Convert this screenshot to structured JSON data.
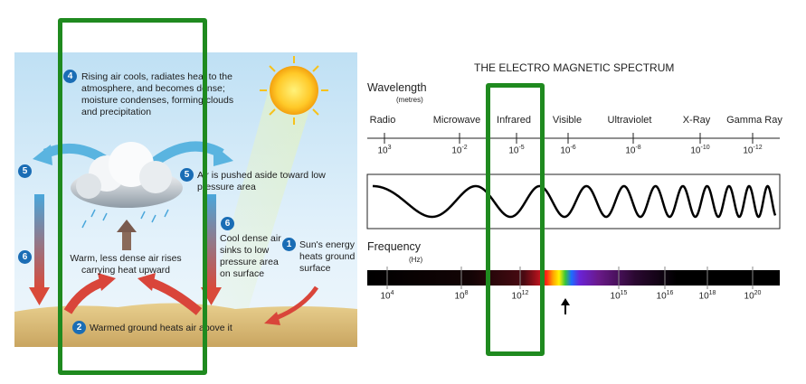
{
  "convection": {
    "step4": {
      "number": "4",
      "text": "Rising air cools, radiates heat to the atmosphere, and becomes dense; moisture condenses, forming clouds and precipitation"
    },
    "step5_left": {
      "number": "5"
    },
    "step5_right": {
      "number": "5",
      "text": "Air is pushed aside toward low pressure area"
    },
    "step6_left": {
      "number": "6"
    },
    "step6_right": {
      "number": "6",
      "text": "Cool dense air sinks to low pressure area on surface"
    },
    "step1": {
      "number": "1",
      "text": "Sun's energy heats ground surface"
    },
    "rising_text": "Warm, less dense air rises carrying heat upward",
    "step2": {
      "number": "2",
      "text": "Warmed ground heats air above it"
    }
  },
  "spectrum": {
    "title": "THE ELECTRO MAGNETIC SPECTRUM",
    "wavelength_label": "Wavelength",
    "wavelength_unit": "(metres)",
    "bands": [
      "Radio",
      "Microwave",
      "Infrared",
      "Visible",
      "Ultraviolet",
      "X-Ray",
      "Gamma Ray"
    ],
    "wavelength_ticks": [
      {
        "base": "10",
        "exp": "3"
      },
      {
        "base": "10",
        "exp": "-2"
      },
      {
        "base": "10",
        "exp": "-5"
      },
      {
        "base": "10",
        "exp": "-6"
      },
      {
        "base": "10",
        "exp": "-8"
      },
      {
        "base": "10",
        "exp": "-10"
      },
      {
        "base": "10",
        "exp": "-12"
      }
    ],
    "frequency_label": "Frequency",
    "frequency_unit": "(Hz)",
    "frequency_ticks": [
      {
        "base": "10",
        "exp": "4"
      },
      {
        "base": "10",
        "exp": "8"
      },
      {
        "base": "10",
        "exp": "12"
      },
      {
        "base": "10",
        "exp": "15"
      },
      {
        "base": "10",
        "exp": "16"
      },
      {
        "base": "10",
        "exp": "18"
      },
      {
        "base": "10",
        "exp": "20"
      }
    ]
  },
  "colors": {
    "highlight": "#1f8a1f",
    "badge": "#1a6db5",
    "cool_arrow": "#5ab4e0",
    "warm_arrow": "#d9453a"
  }
}
